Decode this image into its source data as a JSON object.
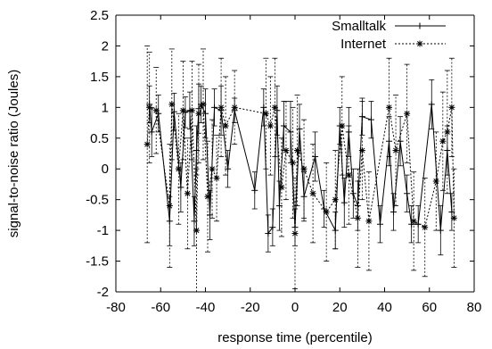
{
  "chart_data": {
    "type": "line",
    "title": "",
    "xlabel": "response time (percentile)",
    "ylabel": "signal-to-noise ratio (Joules)",
    "xlim": [
      -80,
      80
    ],
    "ylim": [
      -2,
      2.5
    ],
    "x_ticks": [
      "-80",
      "-60",
      "-40",
      "-20",
      "0",
      "20",
      "40",
      "60",
      "80"
    ],
    "y_ticks": [
      "-2",
      "-1.5",
      "-1",
      "-0.5",
      "0",
      "0.5",
      "1",
      "1.5",
      "2",
      "2.5"
    ],
    "grid": false,
    "legend_position": "top-right",
    "series": [
      {
        "name": "Smalltalk",
        "line_style": "solid",
        "marker": "+",
        "color": "#000000",
        "points": [
          {
            "x": -65,
            "y": 1.05,
            "err": 0.3
          },
          {
            "x": -64,
            "y": 0.6,
            "err": 0.4
          },
          {
            "x": -61,
            "y": 0.9,
            "err": 0.3
          },
          {
            "x": -56,
            "y": -0.85,
            "err": 0.4
          },
          {
            "x": -54,
            "y": 0.93,
            "err": 0.3
          },
          {
            "x": -51,
            "y": -0.3,
            "err": 0.4
          },
          {
            "x": -49,
            "y": 0.92,
            "err": 0.25
          },
          {
            "x": -47,
            "y": 0.95,
            "err": 0.3
          },
          {
            "x": -45,
            "y": -0.85,
            "err": 0.4
          },
          {
            "x": -44,
            "y": 0.3,
            "err": 0.4
          },
          {
            "x": -43,
            "y": 0.98,
            "err": 0.4
          },
          {
            "x": -42,
            "y": 1.05,
            "err": 0.3
          },
          {
            "x": -40,
            "y": 0.9,
            "err": 0.4
          },
          {
            "x": -38,
            "y": -0.75,
            "err": 0.4
          },
          {
            "x": -36,
            "y": 1.0,
            "err": 0.3
          },
          {
            "x": -33,
            "y": 0.95,
            "err": 0.4
          },
          {
            "x": -30,
            "y": 0.0,
            "err": 0.3
          },
          {
            "x": -27,
            "y": 0.95,
            "err": 0.2
          },
          {
            "x": -18,
            "y": -0.35,
            "err": 0.3
          },
          {
            "x": -14,
            "y": 1.0,
            "err": 0.3
          },
          {
            "x": -12,
            "y": -1.05,
            "err": 0.3
          },
          {
            "x": -10,
            "y": -0.95,
            "err": 0.3
          },
          {
            "x": -8,
            "y": 0.95,
            "err": 0.4
          },
          {
            "x": -7,
            "y": -0.6,
            "err": 0.4
          },
          {
            "x": -5,
            "y": 0.7,
            "err": 0.4
          },
          {
            "x": -2,
            "y": 0.6,
            "err": 0.5
          },
          {
            "x": 0,
            "y": -0.95,
            "err": 0.3
          },
          {
            "x": 2,
            "y": 0.65,
            "err": 0.4
          },
          {
            "x": 4,
            "y": -0.45,
            "err": 0.4
          },
          {
            "x": 9,
            "y": 0.2,
            "err": 0.4
          },
          {
            "x": 13,
            "y": -0.65,
            "err": 0.3
          },
          {
            "x": 18,
            "y": -1.0,
            "err": 0.3
          },
          {
            "x": 20,
            "y": 0.7,
            "err": 0.3
          },
          {
            "x": 22,
            "y": -0.55,
            "err": 0.4
          },
          {
            "x": 24,
            "y": 0.6,
            "err": 0.4
          },
          {
            "x": 26,
            "y": -0.4,
            "err": 0.4
          },
          {
            "x": 28,
            "y": -0.6,
            "err": 0.4
          },
          {
            "x": 30,
            "y": 0.85,
            "err": 0.3
          },
          {
            "x": 34,
            "y": 0.8,
            "err": 0.3
          },
          {
            "x": 38,
            "y": -0.9,
            "err": 0.3
          },
          {
            "x": 42,
            "y": 0.45,
            "err": 0.4
          },
          {
            "x": 44,
            "y": -0.7,
            "err": 0.3
          },
          {
            "x": 47,
            "y": 0.45,
            "err": 0.4
          },
          {
            "x": 50,
            "y": -0.4,
            "err": 0.3
          },
          {
            "x": 52,
            "y": -0.9,
            "err": 0.3
          },
          {
            "x": 55,
            "y": -0.9,
            "err": 0.3
          },
          {
            "x": 61,
            "y": 1.05,
            "err": 0.4
          },
          {
            "x": 65,
            "y": -1.0,
            "err": 0.4
          },
          {
            "x": 68,
            "y": 0.3,
            "err": 0.4
          },
          {
            "x": 70,
            "y": -0.7,
            "err": 0.3
          }
        ]
      },
      {
        "name": "Internet",
        "line_style": "dotted",
        "marker": "*",
        "color": "#000000",
        "points": [
          {
            "x": -66,
            "y": 0.4,
            "err": 1.6
          },
          {
            "x": -65,
            "y": 1.0,
            "err": 0.9
          },
          {
            "x": -62,
            "y": 0.95,
            "err": 0.7
          },
          {
            "x": -56,
            "y": -0.6,
            "err": 1.0
          },
          {
            "x": -55,
            "y": 1.05,
            "err": 0.9
          },
          {
            "x": -52,
            "y": 0.0,
            "err": 0.9
          },
          {
            "x": -50,
            "y": 0.95,
            "err": 0.8
          },
          {
            "x": -48,
            "y": -0.4,
            "err": 0.9
          },
          {
            "x": -46,
            "y": 0.95,
            "err": 0.8
          },
          {
            "x": -44,
            "y": -1.0,
            "err": 1.0
          },
          {
            "x": -43,
            "y": 0.9,
            "err": 0.8
          },
          {
            "x": -41,
            "y": 1.05,
            "err": 0.9
          },
          {
            "x": -39,
            "y": -0.45,
            "err": 0.9
          },
          {
            "x": -37,
            "y": 0.0,
            "err": 0.8
          },
          {
            "x": -35,
            "y": -0.15,
            "err": 0.7
          },
          {
            "x": -33,
            "y": 1.0,
            "err": 0.8
          },
          {
            "x": -31,
            "y": 0.7,
            "err": 0.8
          },
          {
            "x": -27,
            "y": 1.0,
            "err": 0.6
          },
          {
            "x": -13,
            "y": 0.9,
            "err": 0.9
          },
          {
            "x": -11,
            "y": 0.7,
            "err": 0.8
          },
          {
            "x": -9,
            "y": 1.0,
            "err": 0.8
          },
          {
            "x": -6,
            "y": -0.3,
            "err": 0.8
          },
          {
            "x": -4,
            "y": 0.3,
            "err": 0.8
          },
          {
            "x": -1,
            "y": 0.1,
            "err": 0.9
          },
          {
            "x": 0,
            "y": -1.05,
            "err": 0.9
          },
          {
            "x": 1,
            "y": 0.3,
            "err": 0.9
          },
          {
            "x": 4,
            "y": 0.0,
            "err": 0.8
          },
          {
            "x": 8,
            "y": -0.4,
            "err": 0.8
          },
          {
            "x": 14,
            "y": -0.7,
            "err": 0.8
          },
          {
            "x": 18,
            "y": -0.5,
            "err": 0.8
          },
          {
            "x": 21,
            "y": 0.7,
            "err": 0.8
          },
          {
            "x": 24,
            "y": -0.1,
            "err": 0.8
          },
          {
            "x": 28,
            "y": -0.8,
            "err": 0.8
          },
          {
            "x": 30,
            "y": 0.3,
            "err": 0.8
          },
          {
            "x": 33,
            "y": -0.85,
            "err": 0.8
          },
          {
            "x": 42,
            "y": 1.0,
            "err": 0.8
          },
          {
            "x": 45,
            "y": 0.3,
            "err": 0.9
          },
          {
            "x": 50,
            "y": 0.9,
            "err": 0.8
          },
          {
            "x": 53,
            "y": -0.85,
            "err": 0.8
          },
          {
            "x": 58,
            "y": -0.95,
            "err": 0.8
          },
          {
            "x": 63,
            "y": -0.2,
            "err": 0.8
          },
          {
            "x": 66,
            "y": 0.45,
            "err": 0.8
          },
          {
            "x": 68,
            "y": 0.6,
            "err": 1.0
          },
          {
            "x": 70,
            "y": 1.0,
            "err": 0.8
          },
          {
            "x": 71,
            "y": -0.8,
            "err": 0.8
          }
        ]
      }
    ]
  }
}
